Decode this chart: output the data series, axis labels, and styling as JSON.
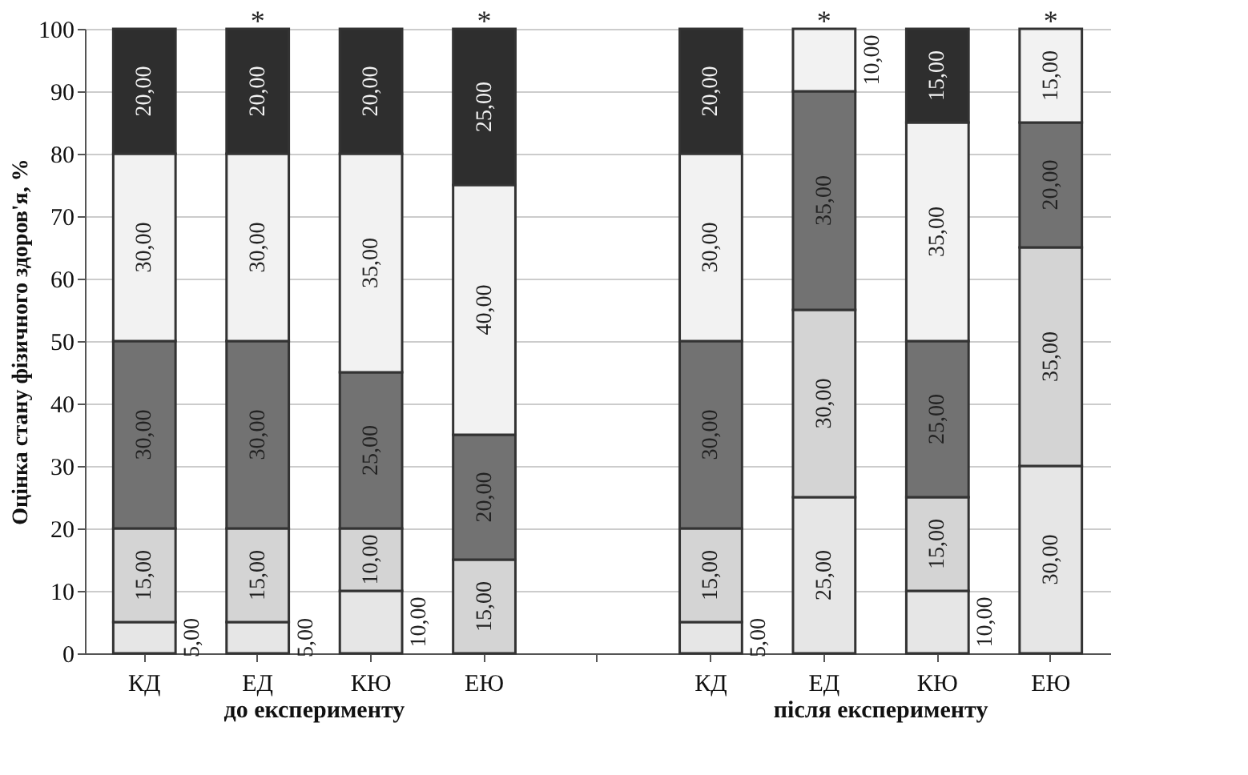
{
  "chart_data": {
    "type": "bar",
    "stacked": true,
    "categories": [
      "КД",
      "ЕД",
      "КЮ",
      "ЕЮ",
      null,
      "КД",
      "ЕД",
      "КЮ",
      "ЕЮ"
    ],
    "series": [
      {
        "color": "#e6e6e6",
        "values": [
          5,
          5,
          10,
          0,
          null,
          5,
          25,
          10,
          30
        ],
        "value_labels": [
          "5,00",
          "5,00",
          "10,00",
          null,
          null,
          "5,00",
          "25,00",
          "10,00",
          "30,00"
        ]
      },
      {
        "color": "#d4d4d4",
        "values": [
          15,
          15,
          10,
          15,
          null,
          15,
          30,
          15,
          35
        ],
        "value_labels": [
          "15,00",
          "15,00",
          "10,00",
          "15,00",
          null,
          "15,00",
          "30,00",
          "15,00",
          "35,00"
        ]
      },
      {
        "color": "#727272",
        "values": [
          30,
          30,
          25,
          20,
          null,
          30,
          35,
          25,
          20
        ],
        "value_labels": [
          "30,00",
          "30,00",
          "25,00",
          "20,00",
          null,
          "30,00",
          "35,00",
          "25,00",
          "20,00"
        ]
      },
      {
        "color": "#f2f2f2",
        "values": [
          30,
          30,
          35,
          40,
          null,
          30,
          10,
          35,
          15
        ],
        "value_labels": [
          "30,00",
          "30,00",
          "35,00",
          "40,00",
          null,
          "30,00",
          "10,00",
          "35,00",
          "15,00"
        ]
      },
      {
        "color": "#2e2e2e",
        "values": [
          20,
          20,
          20,
          25,
          null,
          20,
          0,
          15,
          0
        ],
        "value_labels": [
          "20,00",
          "20,00",
          "20,00",
          "25,00",
          null,
          "20,00",
          null,
          "15,00",
          null
        ]
      }
    ],
    "ylabel": "Оцінка стану фізичного здоров'я, %",
    "ylim": [
      0,
      100
    ],
    "yticks": [
      0,
      10,
      20,
      30,
      40,
      50,
      60,
      70,
      80,
      90,
      100
    ],
    "grid": "y",
    "annotations": [
      {
        "text": "*",
        "x": "ЕД",
        "y": 100
      },
      {
        "text": "*",
        "x": "ЕЮ",
        "y": 100
      },
      "до експерименту",
      "після експерименту"
    ]
  }
}
